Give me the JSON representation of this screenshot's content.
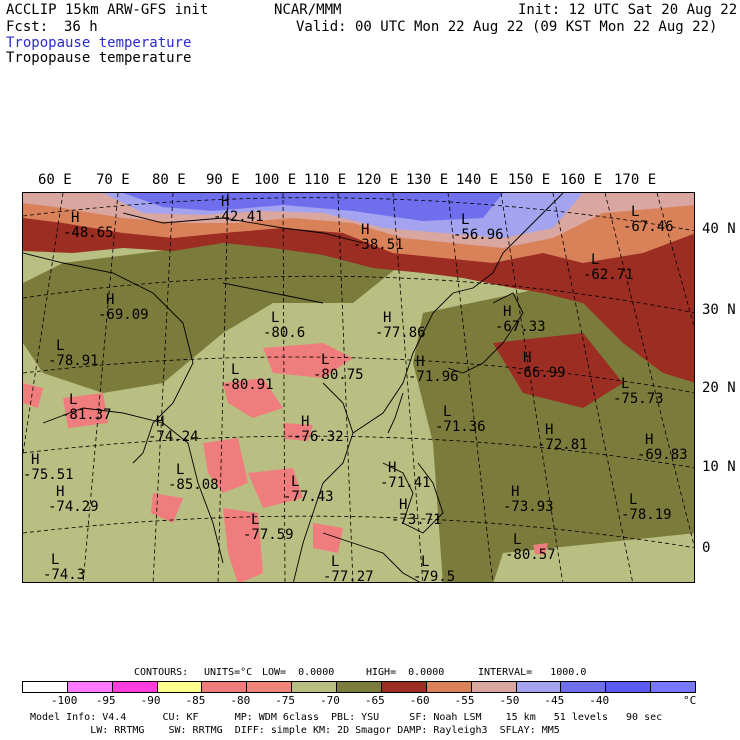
{
  "header": {
    "line1_left": "ACCLIP 15km ARW-GFS init",
    "line1_center": "NCAR/MMM",
    "line1_right": "Init: 12 UTC Sat 20 Aug 22",
    "fcst_label": "Fcst:",
    "fcst_value": "36 h",
    "valid": "Valid: 00 UTC Mon 22 Aug 22 (09 KST Mon 22 Aug 22)",
    "field_title_1": "Tropopause temperature",
    "field_title_2": "Tropopause temperature"
  },
  "map": {
    "lon_labels": [
      "60 E",
      "70 E",
      "80 E",
      "90 E",
      "100 E",
      "110 E",
      "120 E",
      "130 E",
      "140 E",
      "150 E",
      "160 E",
      "170 E"
    ],
    "lat_labels": [
      "40 N",
      "30 N",
      "20 N",
      "10 N",
      "0"
    ],
    "markers": [
      {
        "letter": "H",
        "value": "-48.65"
      },
      {
        "letter": "H",
        "value": "-42.41"
      },
      {
        "letter": "H",
        "value": "-38.51"
      },
      {
        "letter": "L",
        "value": "-56.96"
      },
      {
        "letter": "L",
        "value": "-67.46"
      },
      {
        "letter": "L",
        "value": "-62.71"
      },
      {
        "letter": "H",
        "value": "-69.09"
      },
      {
        "letter": "L",
        "value": "-80.6"
      },
      {
        "letter": "H",
        "value": "-77.86"
      },
      {
        "letter": "H",
        "value": "-67.33"
      },
      {
        "letter": "L",
        "value": "-78.91"
      },
      {
        "letter": "L",
        "value": "-80.91"
      },
      {
        "letter": "L",
        "value": "-80.75"
      },
      {
        "letter": "H",
        "value": "-71.96"
      },
      {
        "letter": "H",
        "value": "-66.99"
      },
      {
        "letter": "L",
        "value": "-75.73"
      },
      {
        "letter": "L",
        "value": "-81.37"
      },
      {
        "letter": "H",
        "value": "-74.24"
      },
      {
        "letter": "H",
        "value": "-76.32"
      },
      {
        "letter": "L",
        "value": "-71.36"
      },
      {
        "letter": "H",
        "value": "-72.81"
      },
      {
        "letter": "H",
        "value": "-69.83"
      },
      {
        "letter": "H",
        "value": "-75.51"
      },
      {
        "letter": "L",
        "value": "-85.08"
      },
      {
        "letter": "L",
        "value": "-77.43"
      },
      {
        "letter": "H",
        "value": "-71.41"
      },
      {
        "letter": "H",
        "value": "-73.71"
      },
      {
        "letter": "H",
        "value": "-73.93"
      },
      {
        "letter": "L",
        "value": "-78.19"
      },
      {
        "letter": "H",
        "value": "-74.29"
      },
      {
        "letter": "L",
        "value": "-77.59"
      },
      {
        "letter": "L",
        "value": "-80.57"
      },
      {
        "letter": "L",
        "value": "-74.3"
      },
      {
        "letter": "L",
        "value": "-77.27"
      },
      {
        "letter": "L",
        "value": "-79.5"
      }
    ],
    "colors": {
      "c1": "#6f6fee",
      "c2": "#d9a7a0",
      "c3": "#9b2d22",
      "c4": "#d9825a",
      "c5": "#b9bf82",
      "c6": "#7b7b3c",
      "c7": "#f07d7d",
      "c8": "#a3a3ef"
    }
  },
  "contours_line": {
    "label": "CONTOURS:",
    "units": "UNITS=°C",
    "low": "LOW=  0.0000",
    "high": "HIGH=  0.0000",
    "interval": "INTERVAL=   1000.0"
  },
  "colorbar": {
    "colors": [
      "#ffffff",
      "#ff78ff",
      "#ff3cdc",
      "#ffff8c",
      "#f07d7d",
      "#f0857a",
      "#b9bf82",
      "#7b7b3c",
      "#9b2d22",
      "#d9825a",
      "#d9a7a0",
      "#a3a3ef",
      "#6f6fee",
      "#5a5af0",
      "#7878ff"
    ],
    "ticks": [
      "-100",
      "-95",
      "-90",
      "-85",
      "-80",
      "-75",
      "-70",
      "-65",
      "-60",
      "-55",
      "-50",
      "-45",
      "-40"
    ],
    "unit": "°C"
  },
  "footer": {
    "line1": "Model Info: V4.4      CU: KF      MP: WDM 6class  PBL: YSU     SF: Noah LSM    15 km   51 levels   90 sec",
    "line2": "          LW: RRTMG    SW: RRTMG  DIFF: simple KM: 2D Smagor DAMP: Rayleigh3  SFLAY: MM5"
  }
}
